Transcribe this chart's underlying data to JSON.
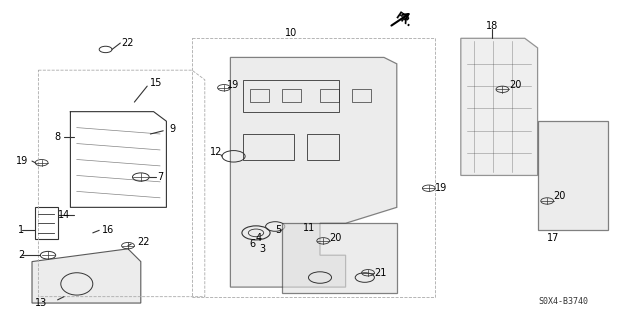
{
  "background_color": "#ffffff",
  "diagram_code": "S0X4-B3740",
  "line_color": "#333333",
  "text_color": "#000000",
  "font_size": 7
}
